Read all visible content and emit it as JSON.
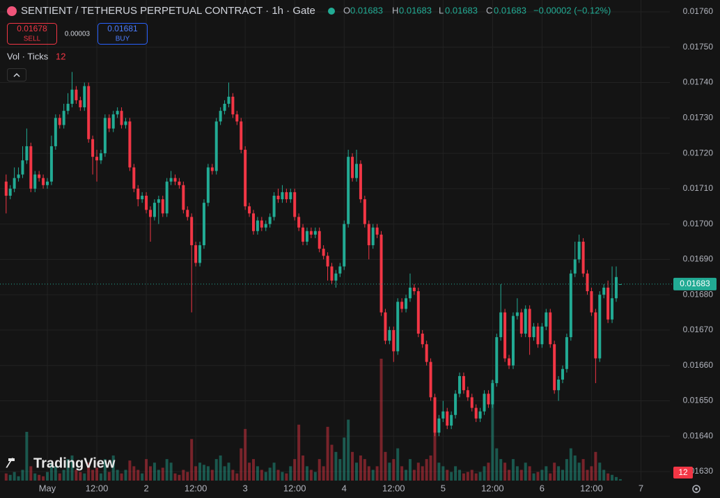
{
  "chart_data": {
    "type": "candlestick",
    "title": "SENTIENT / TETHERUS PERPETUAL CONTRACT · 1h · Gate",
    "header": {
      "o_label": "O",
      "open": 0.01683,
      "h_label": "H",
      "high": 0.01683,
      "l_label": "L",
      "low": 0.01683,
      "c_label": "C",
      "close": 0.01683,
      "change": "−0.00002 (−0.12%)"
    },
    "sell": {
      "price": 0.01678,
      "label": "SELL"
    },
    "spread": 3e-05,
    "buy": {
      "price": 0.01681,
      "label": "BUY"
    },
    "volume_title": "Vol · Ticks",
    "watermark": "TradingView",
    "up_color": "#22ab94",
    "down_color": "#f23645",
    "grid": true,
    "ylim": [
      0.0162744,
      0.0176335
    ],
    "yticks": [
      {
        "value": 0.0176,
        "label": "0.01760"
      },
      {
        "value": 0.0175,
        "label": "0.01750"
      },
      {
        "value": 0.0174,
        "label": "0.01740"
      },
      {
        "value": 0.0173,
        "label": "0.01730"
      },
      {
        "value": 0.0172,
        "label": "0.01720"
      },
      {
        "value": 0.0171,
        "label": "0.01710"
      },
      {
        "value": 0.017,
        "label": "0.01700"
      },
      {
        "value": 0.0169,
        "label": "0.01690"
      },
      {
        "value": 0.0168,
        "label": "0.01680"
      },
      {
        "value": 0.0167,
        "label": "0.01670"
      },
      {
        "value": 0.0166,
        "label": "0.01660"
      },
      {
        "value": 0.0165,
        "label": "0.01650"
      },
      {
        "value": 0.0164,
        "label": "0.01640"
      },
      {
        "value": 0.0163,
        "label": "0.01630"
      }
    ],
    "xticks": [
      {
        "value": 10,
        "label": "May"
      },
      {
        "value": 22,
        "label": "12:00"
      },
      {
        "value": 34,
        "label": "2"
      },
      {
        "value": 46,
        "label": "12:00"
      },
      {
        "value": 58,
        "label": "3"
      },
      {
        "value": 70,
        "label": "12:00"
      },
      {
        "value": 82,
        "label": "4"
      },
      {
        "value": 94,
        "label": "12:00"
      },
      {
        "value": 106,
        "label": "5"
      },
      {
        "value": 118,
        "label": "12:00"
      },
      {
        "value": 130,
        "label": "6"
      },
      {
        "value": 142,
        "label": "12:00"
      },
      {
        "value": 154,
        "label": "7"
      }
    ],
    "last_price": {
      "value": 0.01683,
      "label": "0.01683"
    },
    "ohlc": [
      [
        0.01712,
        0.01714,
        0.01703,
        0.01708
      ],
      [
        0.01708,
        0.01711,
        0.01707,
        0.0171
      ],
      [
        0.0171,
        0.01716,
        0.01709,
        0.01713
      ],
      [
        0.01713,
        0.01716,
        0.01712,
        0.01714
      ],
      [
        0.01714,
        0.01722,
        0.01713,
        0.01718
      ],
      [
        0.01718,
        0.01727,
        0.01717,
        0.01722
      ],
      [
        0.01722,
        0.01723,
        0.01709,
        0.0171
      ],
      [
        0.0171,
        0.01715,
        0.01709,
        0.01714
      ],
      [
        0.01714,
        0.01715,
        0.01712,
        0.01713
      ],
      [
        0.01713,
        0.01714,
        0.0171,
        0.01711
      ],
      [
        0.01711,
        0.01713,
        0.0171,
        0.01712
      ],
      [
        0.01712,
        0.01725,
        0.01711,
        0.01722
      ],
      [
        0.01722,
        0.01731,
        0.01721,
        0.0173
      ],
      [
        0.0173,
        0.01731,
        0.01727,
        0.01728
      ],
      [
        0.01728,
        0.01734,
        0.01727,
        0.01732
      ],
      [
        0.01732,
        0.01737,
        0.01731,
        0.01734
      ],
      [
        0.01734,
        0.01743,
        0.01733,
        0.01738
      ],
      [
        0.01738,
        0.01739,
        0.01734,
        0.01735
      ],
      [
        0.01735,
        0.01736,
        0.01732,
        0.01733
      ],
      [
        0.01733,
        0.0174,
        0.01732,
        0.01739
      ],
      [
        0.01739,
        0.0174,
        0.01723,
        0.01724
      ],
      [
        0.01724,
        0.01725,
        0.01714,
        0.01719
      ],
      [
        0.01719,
        0.01721,
        0.01712,
        0.01718
      ],
      [
        0.01718,
        0.01721,
        0.01717,
        0.0172
      ],
      [
        0.0172,
        0.01731,
        0.01719,
        0.0173
      ],
      [
        0.0173,
        0.01731,
        0.01726,
        0.01727
      ],
      [
        0.01727,
        0.01732,
        0.01726,
        0.01731
      ],
      [
        0.01731,
        0.01733,
        0.0173,
        0.01732
      ],
      [
        0.01732,
        0.01733,
        0.01727,
        0.01728
      ],
      [
        0.01728,
        0.0173,
        0.01727,
        0.01729
      ],
      [
        0.01729,
        0.0173,
        0.01715,
        0.01716
      ],
      [
        0.01716,
        0.01717,
        0.01709,
        0.0171
      ],
      [
        0.0171,
        0.01711,
        0.01705,
        0.01707
      ],
      [
        0.01707,
        0.01709,
        0.01706,
        0.01708
      ],
      [
        0.01708,
        0.01709,
        0.01703,
        0.01704
      ],
      [
        0.01704,
        0.01705,
        0.01695,
        0.01702
      ],
      [
        0.01702,
        0.01707,
        0.01701,
        0.01706
      ],
      [
        0.01706,
        0.01708,
        0.017,
        0.01707
      ],
      [
        0.01707,
        0.01708,
        0.01702,
        0.01703
      ],
      [
        0.01703,
        0.01713,
        0.01702,
        0.01712
      ],
      [
        0.01712,
        0.01715,
        0.01711,
        0.01713
      ],
      [
        0.01713,
        0.01714,
        0.01711,
        0.01712
      ],
      [
        0.01712,
        0.01713,
        0.0171,
        0.01711
      ],
      [
        0.01711,
        0.01712,
        0.01703,
        0.01704
      ],
      [
        0.01704,
        0.01705,
        0.01701,
        0.01702
      ],
      [
        0.01702,
        0.01703,
        0.01675,
        0.01694
      ],
      [
        0.01694,
        0.01695,
        0.01688,
        0.01689
      ],
      [
        0.01689,
        0.01695,
        0.01688,
        0.01694
      ],
      [
        0.01694,
        0.01707,
        0.01693,
        0.01706
      ],
      [
        0.01706,
        0.01717,
        0.01705,
        0.01716
      ],
      [
        0.01716,
        0.01717,
        0.01714,
        0.01715
      ],
      [
        0.01715,
        0.0173,
        0.01714,
        0.01729
      ],
      [
        0.01729,
        0.01733,
        0.01728,
        0.01732
      ],
      [
        0.01732,
        0.01735,
        0.01731,
        0.01734
      ],
      [
        0.01734,
        0.0174,
        0.01733,
        0.01736
      ],
      [
        0.01736,
        0.01737,
        0.0173,
        0.01731
      ],
      [
        0.01731,
        0.01732,
        0.01728,
        0.01729
      ],
      [
        0.01729,
        0.0173,
        0.0172,
        0.01721
      ],
      [
        0.01721,
        0.01722,
        0.01704,
        0.01705
      ],
      [
        0.01705,
        0.01706,
        0.01702,
        0.01703
      ],
      [
        0.01703,
        0.01704,
        0.01697,
        0.01698
      ],
      [
        0.01698,
        0.01702,
        0.01697,
        0.01701
      ],
      [
        0.01701,
        0.01702,
        0.01698,
        0.01699
      ],
      [
        0.01699,
        0.01701,
        0.01698,
        0.017
      ],
      [
        0.017,
        0.01703,
        0.01699,
        0.01702
      ],
      [
        0.01702,
        0.01709,
        0.01701,
        0.01708
      ],
      [
        0.01708,
        0.0171,
        0.01706,
        0.01707
      ],
      [
        0.01707,
        0.01711,
        0.01706,
        0.01709
      ],
      [
        0.01709,
        0.0171,
        0.01706,
        0.01707
      ],
      [
        0.01707,
        0.0171,
        0.01706,
        0.01709
      ],
      [
        0.01709,
        0.0171,
        0.01701,
        0.01702
      ],
      [
        0.01702,
        0.01703,
        0.01698,
        0.01699
      ],
      [
        0.01699,
        0.017,
        0.01694,
        0.01695
      ],
      [
        0.01695,
        0.01699,
        0.01694,
        0.01698
      ],
      [
        0.01698,
        0.01699,
        0.01696,
        0.01697
      ],
      [
        0.01697,
        0.01699,
        0.01696,
        0.01698
      ],
      [
        0.01698,
        0.01699,
        0.01692,
        0.01693
      ],
      [
        0.01693,
        0.01694,
        0.0169,
        0.01691
      ],
      [
        0.01691,
        0.01692,
        0.01684,
        0.01688
      ],
      [
        0.01688,
        0.01689,
        0.01683,
        0.01684
      ],
      [
        0.01684,
        0.01687,
        0.01682,
        0.01686
      ],
      [
        0.01686,
        0.01689,
        0.01685,
        0.01688
      ],
      [
        0.01688,
        0.01701,
        0.01687,
        0.017
      ],
      [
        0.017,
        0.01721,
        0.01699,
        0.01719
      ],
      [
        0.01719,
        0.0172,
        0.01712,
        0.01713
      ],
      [
        0.01713,
        0.01721,
        0.01712,
        0.01717
      ],
      [
        0.01717,
        0.01718,
        0.01706,
        0.01707
      ],
      [
        0.01707,
        0.01708,
        0.01699,
        0.017
      ],
      [
        0.017,
        0.01701,
        0.0169,
        0.01694
      ],
      [
        0.01694,
        0.017,
        0.01693,
        0.01699
      ],
      [
        0.01699,
        0.017,
        0.01696,
        0.01697
      ],
      [
        0.01697,
        0.01698,
        0.01674,
        0.01675
      ],
      [
        0.01675,
        0.01676,
        0.01666,
        0.01667
      ],
      [
        0.01667,
        0.01671,
        0.01666,
        0.0167
      ],
      [
        0.0167,
        0.01671,
        0.01661,
        0.01664
      ],
      [
        0.01664,
        0.01679,
        0.01663,
        0.01678
      ],
      [
        0.01678,
        0.01679,
        0.01675,
        0.01676
      ],
      [
        0.01676,
        0.0168,
        0.01675,
        0.01679
      ],
      [
        0.01679,
        0.01686,
        0.01678,
        0.01682
      ],
      [
        0.01682,
        0.01683,
        0.0168,
        0.01681
      ],
      [
        0.01681,
        0.01682,
        0.01668,
        0.01669
      ],
      [
        0.01669,
        0.0167,
        0.01665,
        0.01666
      ],
      [
        0.01666,
        0.01667,
        0.0166,
        0.01661
      ],
      [
        0.01661,
        0.01662,
        0.0165,
        0.01651
      ],
      [
        0.01651,
        0.01652,
        0.0164,
        0.01641
      ],
      [
        0.01641,
        0.01646,
        0.0164,
        0.01645
      ],
      [
        0.01645,
        0.0165,
        0.01644,
        0.01647
      ],
      [
        0.01647,
        0.01648,
        0.01642,
        0.01643
      ],
      [
        0.01643,
        0.01647,
        0.01642,
        0.01646
      ],
      [
        0.01646,
        0.01653,
        0.01645,
        0.01652
      ],
      [
        0.01652,
        0.01658,
        0.01651,
        0.01657
      ],
      [
        0.01657,
        0.01658,
        0.01652,
        0.01653
      ],
      [
        0.01653,
        0.01654,
        0.0165,
        0.01651
      ],
      [
        0.01651,
        0.01652,
        0.01647,
        0.01648
      ],
      [
        0.01648,
        0.01649,
        0.01644,
        0.01645
      ],
      [
        0.01645,
        0.01648,
        0.01644,
        0.01647
      ],
      [
        0.01647,
        0.01653,
        0.01646,
        0.01652
      ],
      [
        0.01652,
        0.01653,
        0.01648,
        0.01649
      ],
      [
        0.01649,
        0.01656,
        0.01648,
        0.01655
      ],
      [
        0.01655,
        0.01669,
        0.01654,
        0.01668
      ],
      [
        0.01668,
        0.01683,
        0.01667,
        0.01675
      ],
      [
        0.01675,
        0.01676,
        0.01661,
        0.01662
      ],
      [
        0.01662,
        0.01663,
        0.01659,
        0.0166
      ],
      [
        0.0166,
        0.01675,
        0.01659,
        0.01674
      ],
      [
        0.01674,
        0.01679,
        0.01673,
        0.01675
      ],
      [
        0.01675,
        0.01676,
        0.01668,
        0.01669
      ],
      [
        0.01669,
        0.01677,
        0.01668,
        0.01676
      ],
      [
        0.01676,
        0.01677,
        0.01663,
        0.01668
      ],
      [
        0.01668,
        0.01672,
        0.01667,
        0.01671
      ],
      [
        0.01671,
        0.01672,
        0.01665,
        0.01666
      ],
      [
        0.01666,
        0.01672,
        0.01665,
        0.01671
      ],
      [
        0.01671,
        0.01676,
        0.0167,
        0.01675
      ],
      [
        0.01675,
        0.01676,
        0.01665,
        0.01666
      ],
      [
        0.01666,
        0.01667,
        0.01652,
        0.01653
      ],
      [
        0.01653,
        0.01657,
        0.0165,
        0.01656
      ],
      [
        0.01656,
        0.0166,
        0.01655,
        0.01659
      ],
      [
        0.01659,
        0.01669,
        0.01658,
        0.01668
      ],
      [
        0.01668,
        0.01687,
        0.01667,
        0.01686
      ],
      [
        0.01686,
        0.01695,
        0.01685,
        0.0169
      ],
      [
        0.0169,
        0.01697,
        0.01689,
        0.01695
      ],
      [
        0.01695,
        0.01696,
        0.01685,
        0.01686
      ],
      [
        0.01686,
        0.01687,
        0.0168,
        0.01681
      ],
      [
        0.01681,
        0.01682,
        0.01674,
        0.01675
      ],
      [
        0.01675,
        0.01676,
        0.01655,
        0.01662
      ],
      [
        0.01662,
        0.01681,
        0.01661,
        0.0168
      ],
      [
        0.0168,
        0.01683,
        0.01679,
        0.01682
      ],
      [
        0.01682,
        0.01684,
        0.01672,
        0.01673
      ],
      [
        0.01673,
        0.01688,
        0.01672,
        0.01679
      ],
      [
        0.01679,
        0.01688,
        0.01678,
        0.01685
      ],
      [
        0.01683,
        0.01683,
        0.01683,
        0.01683
      ]
    ],
    "volume": [
      60,
      48,
      72,
      36,
      90,
      408,
      120,
      60,
      48,
      36,
      72,
      150,
      120,
      60,
      90,
      180,
      210,
      90,
      72,
      60,
      150,
      90,
      108,
      60,
      180,
      72,
      210,
      90,
      60,
      90,
      168,
      120,
      90,
      60,
      180,
      120,
      150,
      90,
      108,
      180,
      150,
      60,
      48,
      90,
      72,
      348,
      120,
      150,
      132,
      120,
      90,
      180,
      210,
      120,
      150,
      90,
      60,
      270,
      432,
      150,
      180,
      120,
      90,
      72,
      108,
      150,
      90,
      72,
      60,
      120,
      180,
      468,
      210,
      120,
      90,
      72,
      180,
      120,
      450,
      300,
      240,
      180,
      360,
      510,
      240,
      150,
      210,
      180,
      120,
      90,
      120,
      1020,
      240,
      150,
      180,
      270,
      120,
      90,
      180,
      90,
      150,
      120,
      180,
      210,
      420,
      150,
      120,
      90,
      72,
      120,
      90,
      60,
      72,
      90,
      60,
      72,
      120,
      150,
      840,
      270,
      180,
      150,
      90,
      180,
      120,
      90,
      150,
      120,
      60,
      72,
      90,
      120,
      60,
      150,
      120,
      90,
      180,
      270,
      210,
      150,
      180,
      90,
      120,
      240,
      150,
      90,
      60,
      48,
      30,
      12
    ]
  }
}
